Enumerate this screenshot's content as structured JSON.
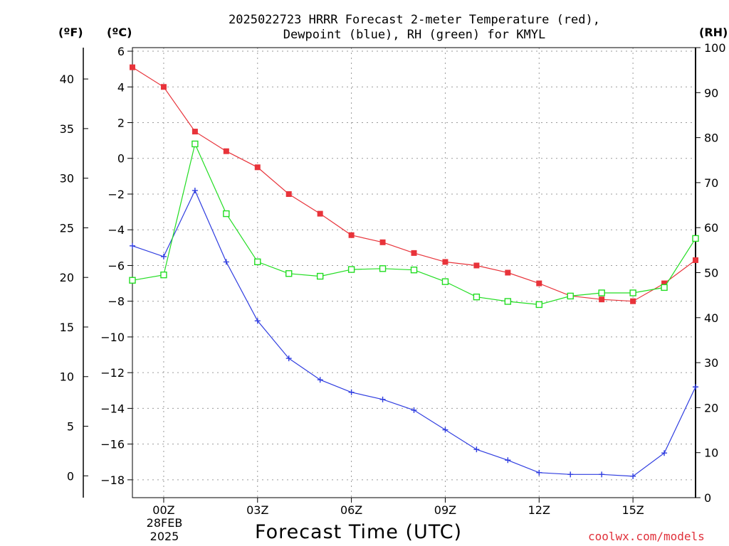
{
  "chart_data": {
    "type": "line",
    "title_line1": "2025022723 HRRR Forecast 2-meter Temperature (red),",
    "title_line2": "Dewpoint (blue), RH (green) for KMYL",
    "xlabel": "Forecast Time (UTC)",
    "axis_units": {
      "fahrenheit": "(ºF)",
      "celsius": "(ºC)",
      "rh": "(RH)"
    },
    "date_label": {
      "line1": "28FEB",
      "line2": "2025"
    },
    "credit": "coolwx.com/models",
    "x_ticks": [
      "00Z",
      "03Z",
      "06Z",
      "09Z",
      "12Z",
      "15Z"
    ],
    "x_tick_hours": [
      0,
      3,
      6,
      9,
      12,
      15
    ],
    "xlim": [
      -1,
      17
    ],
    "celsius_axis": {
      "ylim": [
        -19,
        6.2
      ],
      "ticks": [
        6,
        4,
        2,
        0,
        -2,
        -4,
        -6,
        -8,
        -10,
        -12,
        -14,
        -16,
        -18
      ]
    },
    "fahrenheit_axis": {
      "ticks": [
        40,
        35,
        30,
        25,
        20,
        15,
        10,
        5,
        0
      ]
    },
    "rh_axis": {
      "ylim": [
        0,
        100
      ],
      "ticks": [
        100,
        90,
        80,
        70,
        60,
        50,
        40,
        30,
        20,
        10,
        0
      ]
    },
    "x": [
      -1,
      0,
      1,
      2,
      3,
      4,
      5,
      6,
      7,
      8,
      9,
      10,
      11,
      12,
      13,
      14,
      15,
      16,
      17
    ],
    "series": [
      {
        "key": "temperature",
        "axis": "celsius",
        "color": "#e8333a",
        "marker": "filled-square",
        "values": [
          5.1,
          4.0,
          1.5,
          0.4,
          -0.5,
          -2.0,
          -3.1,
          -4.3,
          -4.7,
          -5.3,
          -5.8,
          -6.0,
          -6.4,
          -7.0,
          -7.7,
          -7.9,
          -8.0,
          -7.0,
          -5.7
        ]
      },
      {
        "key": "dewpoint",
        "axis": "celsius",
        "color": "#2f3de0",
        "marker": "plus",
        "values": [
          -4.9,
          -5.5,
          -1.8,
          -5.8,
          -9.1,
          -11.2,
          -12.4,
          -13.1,
          -13.5,
          -14.1,
          -15.2,
          -16.3,
          -16.9,
          -17.6,
          -17.7,
          -17.7,
          -17.8,
          -16.5,
          -12.8
        ]
      },
      {
        "key": "rh",
        "axis": "rh",
        "color": "#22dd22",
        "marker": "open-square",
        "values": [
          48.3,
          49.5,
          78.6,
          63.1,
          52.4,
          49.8,
          49.2,
          50.7,
          50.9,
          50.6,
          48.0,
          44.6,
          43.6,
          42.9,
          44.8,
          45.5,
          45.5,
          46.7,
          57.6
        ]
      }
    ]
  }
}
